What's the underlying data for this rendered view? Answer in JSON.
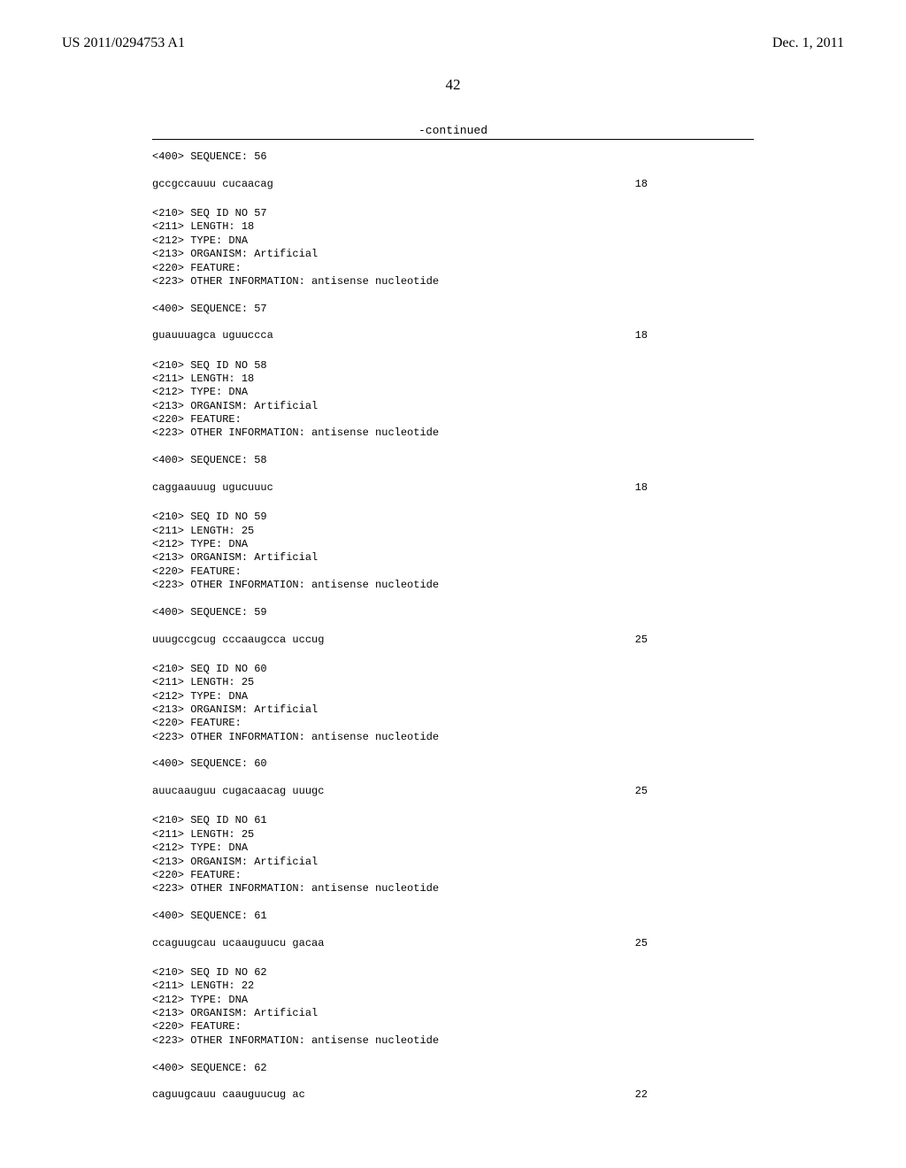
{
  "header": {
    "left": "US 2011/0294753 A1",
    "right": "Dec. 1, 2011"
  },
  "page_number": "42",
  "continued": "-continued",
  "blocks": [
    {
      "lines": [
        "<400> SEQUENCE: 56"
      ],
      "seq": "gccgccauuu cucaacag",
      "len": "18"
    },
    {
      "lines": [
        "<210> SEQ ID NO 57",
        "<211> LENGTH: 18",
        "<212> TYPE: DNA",
        "<213> ORGANISM: Artificial",
        "<220> FEATURE:",
        "<223> OTHER INFORMATION: antisense nucleotide",
        "",
        "<400> SEQUENCE: 57"
      ],
      "seq": "guauuuagca uguuccca",
      "len": "18"
    },
    {
      "lines": [
        "<210> SEQ ID NO 58",
        "<211> LENGTH: 18",
        "<212> TYPE: DNA",
        "<213> ORGANISM: Artificial",
        "<220> FEATURE:",
        "<223> OTHER INFORMATION: antisense nucleotide",
        "",
        "<400> SEQUENCE: 58"
      ],
      "seq": "caggaauuug ugucuuuc",
      "len": "18"
    },
    {
      "lines": [
        "<210> SEQ ID NO 59",
        "<211> LENGTH: 25",
        "<212> TYPE: DNA",
        "<213> ORGANISM: Artificial",
        "<220> FEATURE:",
        "<223> OTHER INFORMATION: antisense nucleotide",
        "",
        "<400> SEQUENCE: 59"
      ],
      "seq": "uuugccgcug cccaaugcca uccug",
      "len": "25"
    },
    {
      "lines": [
        "<210> SEQ ID NO 60",
        "<211> LENGTH: 25",
        "<212> TYPE: DNA",
        "<213> ORGANISM: Artificial",
        "<220> FEATURE:",
        "<223> OTHER INFORMATION: antisense nucleotide",
        "",
        "<400> SEQUENCE: 60"
      ],
      "seq": "auucaauguu cugacaacag uuugc",
      "len": "25"
    },
    {
      "lines": [
        "<210> SEQ ID NO 61",
        "<211> LENGTH: 25",
        "<212> TYPE: DNA",
        "<213> ORGANISM: Artificial",
        "<220> FEATURE:",
        "<223> OTHER INFORMATION: antisense nucleotide",
        "",
        "<400> SEQUENCE: 61"
      ],
      "seq": "ccaguugcau ucaauguucu gacaa",
      "len": "25"
    },
    {
      "lines": [
        "<210> SEQ ID NO 62",
        "<211> LENGTH: 22",
        "<212> TYPE: DNA",
        "<213> ORGANISM: Artificial",
        "<220> FEATURE:",
        "<223> OTHER INFORMATION: antisense nucleotide",
        "",
        "<400> SEQUENCE: 62"
      ],
      "seq": "caguugcauu caauguucug ac",
      "len": "22"
    }
  ]
}
